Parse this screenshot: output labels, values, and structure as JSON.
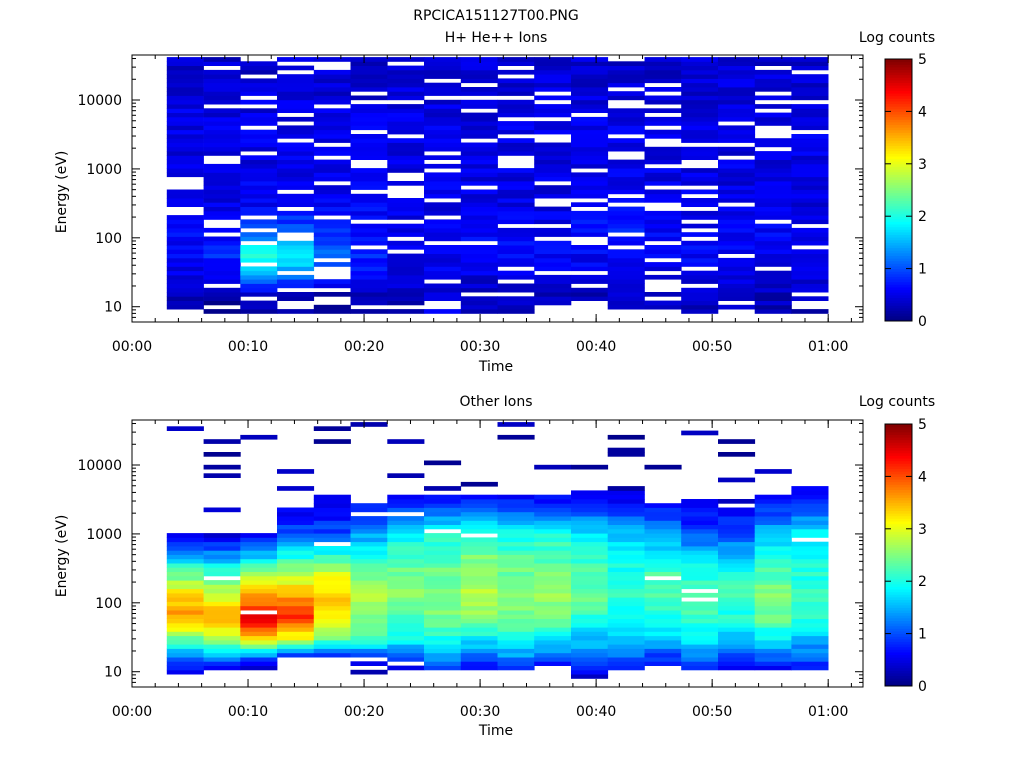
{
  "title": "RPCICA151127T00.PNG",
  "colorscale": {
    "stops": [
      "#00007f",
      "#0000ff",
      "#0080ff",
      "#00ffff",
      "#80ff80",
      "#ffff00",
      "#ff8000",
      "#ff0000",
      "#7f0000"
    ]
  },
  "chart_data": [
    {
      "type": "heatmap",
      "title": "H+ He++ Ions",
      "xlabel": "Time",
      "ylabel": "Energy (eV)",
      "colorbar_label": "Log counts",
      "colorbar_range": [
        0,
        5
      ],
      "colorbar_ticks": [
        "0",
        "1",
        "2",
        "3",
        "4",
        "5"
      ],
      "yscale": "log",
      "xlim": [
        "00:00",
        "01:03"
      ],
      "ylim": [
        6,
        45000
      ],
      "x_ticks": [
        "00:00",
        "00:10",
        "00:20",
        "00:30",
        "00:40",
        "00:50",
        "01:00"
      ],
      "y_ticks": [
        "10",
        "100",
        "1000",
        "10000"
      ],
      "data_extent_x": [
        "00:03",
        "01:00"
      ],
      "time_bins": 18,
      "dominant_log_counts": {
        "energy_above_300eV": 0.6,
        "energy_100_to_300eV_at_00:10_00:15": 2.2,
        "lowest_energy": 0.3
      },
      "bin_log_counts": [
        {
          "time": "00:03",
          "profile": [
            0.2,
            0.3,
            0.5,
            0.6,
            0.6,
            0.5,
            0.5,
            0.5,
            0.4
          ]
        },
        {
          "time": "00:06",
          "profile": [
            0.0,
            0.2,
            0.6,
            0.8,
            0.6,
            0.5,
            0.5,
            0.5,
            0.4
          ]
        },
        {
          "time": "00:10",
          "profile": [
            0.2,
            0.4,
            1.4,
            2.2,
            1.0,
            0.6,
            0.5,
            0.5,
            0.4
          ]
        },
        {
          "time": "00:13",
          "profile": [
            0.2,
            0.4,
            1.3,
            2.0,
            1.1,
            0.6,
            0.5,
            0.5,
            0.4
          ]
        },
        {
          "time": "00:16",
          "profile": [
            0.0,
            0.3,
            0.9,
            1.2,
            0.8,
            0.6,
            0.5,
            0.5,
            0.4
          ]
        },
        {
          "time": "00:19",
          "profile": [
            0.0,
            0.3,
            0.6,
            0.8,
            0.7,
            0.6,
            0.5,
            0.5,
            0.4
          ]
        },
        {
          "time": "00:22",
          "profile": [
            0.2,
            0.3,
            0.5,
            0.6,
            0.6,
            0.5,
            0.5,
            0.5,
            0.4
          ]
        },
        {
          "time": "00:25",
          "profile": [
            0.5,
            0.4,
            0.5,
            0.6,
            0.6,
            0.5,
            0.5,
            0.5,
            0.4
          ]
        },
        {
          "time": "00:29",
          "profile": [
            0.4,
            0.3,
            0.5,
            0.6,
            0.6,
            0.5,
            0.5,
            0.5,
            0.4
          ]
        },
        {
          "time": "00:32",
          "profile": [
            0.3,
            0.3,
            0.5,
            0.6,
            0.6,
            0.5,
            0.5,
            0.5,
            0.4
          ]
        },
        {
          "time": "00:35",
          "profile": [
            0.3,
            0.3,
            0.5,
            0.6,
            0.6,
            0.5,
            0.5,
            0.5,
            0.4
          ]
        },
        {
          "time": "00:38",
          "profile": [
            0.4,
            0.3,
            0.5,
            0.6,
            0.7,
            0.5,
            0.5,
            0.5,
            0.4
          ]
        },
        {
          "time": "00:41",
          "profile": [
            0.3,
            0.3,
            0.5,
            0.6,
            0.8,
            0.6,
            0.5,
            0.5,
            0.4
          ]
        },
        {
          "time": "00:44",
          "profile": [
            0.3,
            0.3,
            0.5,
            0.6,
            0.6,
            0.5,
            0.5,
            0.5,
            0.4
          ]
        },
        {
          "time": "00:47",
          "profile": [
            0.3,
            0.3,
            0.5,
            0.6,
            0.6,
            0.5,
            0.5,
            0.5,
            0.4
          ]
        },
        {
          "time": "00:51",
          "profile": [
            0.3,
            0.3,
            0.5,
            0.6,
            0.6,
            0.5,
            0.5,
            0.5,
            0.4
          ]
        },
        {
          "time": "00:54",
          "profile": [
            0.3,
            0.3,
            0.5,
            0.6,
            0.6,
            0.5,
            0.5,
            0.5,
            0.4
          ]
        },
        {
          "time": "00:57",
          "profile": [
            0.3,
            0.3,
            0.5,
            0.6,
            0.6,
            0.5,
            0.5,
            0.5,
            0.4
          ]
        }
      ],
      "profile_energy_centers_eV": [
        8,
        15,
        30,
        60,
        120,
        300,
        1000,
        5000,
        25000
      ]
    },
    {
      "type": "heatmap",
      "title": "Other Ions",
      "xlabel": "Time",
      "ylabel": "Energy (eV)",
      "colorbar_label": "Log counts",
      "colorbar_range": [
        0,
        5
      ],
      "colorbar_ticks": [
        "0",
        "1",
        "2",
        "3",
        "4",
        "5"
      ],
      "yscale": "log",
      "xlim": [
        "00:00",
        "01:03"
      ],
      "ylim": [
        6,
        45000
      ],
      "x_ticks": [
        "00:00",
        "00:10",
        "00:20",
        "00:30",
        "00:40",
        "00:50",
        "01:00"
      ],
      "y_ticks": [
        "10",
        "100",
        "1000",
        "10000"
      ],
      "data_extent_x": [
        "00:03",
        "01:00"
      ],
      "time_bins": 18,
      "bin_log_counts": [
        {
          "time": "00:03",
          "profile": [
            0.1,
            1.1,
            2.4,
            3.6,
            3.4,
            2.2,
            0.4,
            0.2,
            0.2
          ]
        },
        {
          "time": "00:06",
          "profile": [
            0.1,
            1.2,
            2.6,
            3.6,
            3.0,
            2.0,
            0.4,
            0.2,
            0.2
          ]
        },
        {
          "time": "00:10",
          "profile": [
            0.0,
            0.8,
            3.4,
            4.4,
            3.6,
            2.4,
            0.4,
            0.2,
            0.2
          ]
        },
        {
          "time": "00:13",
          "profile": [
            0.0,
            0.2,
            3.0,
            4.2,
            3.6,
            2.6,
            1.0,
            0.2,
            0.2
          ]
        },
        {
          "time": "00:16",
          "profile": [
            0.0,
            0.2,
            2.4,
            3.2,
            3.5,
            2.8,
            1.0,
            0.2,
            0.2
          ]
        },
        {
          "time": "00:19",
          "profile": [
            0.0,
            0.6,
            2.2,
            2.4,
            2.8,
            2.4,
            1.4,
            0.2,
            0.2
          ]
        },
        {
          "time": "00:22",
          "profile": [
            0.0,
            0.8,
            1.9,
            2.2,
            2.6,
            2.4,
            1.8,
            0.2,
            0.2
          ]
        },
        {
          "time": "00:25",
          "profile": [
            0.0,
            1.4,
            2.0,
            2.4,
            2.6,
            2.4,
            2.0,
            0.2,
            0.2
          ]
        },
        {
          "time": "00:29",
          "profile": [
            0.0,
            1.0,
            1.8,
            2.6,
            2.8,
            2.6,
            2.2,
            0.2,
            0.2
          ]
        },
        {
          "time": "00:32",
          "profile": [
            0.0,
            1.2,
            2.0,
            2.4,
            2.6,
            2.4,
            2.0,
            0.2,
            0.2
          ]
        },
        {
          "time": "00:35",
          "profile": [
            0.0,
            1.0,
            1.8,
            2.4,
            2.6,
            2.4,
            2.0,
            0.2,
            0.2
          ]
        },
        {
          "time": "00:38",
          "profile": [
            0.2,
            1.2,
            1.6,
            2.0,
            2.4,
            2.2,
            1.8,
            0.2,
            0.2
          ]
        },
        {
          "time": "00:41",
          "profile": [
            0.2,
            1.0,
            1.6,
            1.8,
            2.2,
            2.0,
            1.6,
            0.2,
            0.2
          ]
        },
        {
          "time": "00:44",
          "profile": [
            0.0,
            0.8,
            1.6,
            2.0,
            2.2,
            2.2,
            1.4,
            0.2,
            0.2
          ]
        },
        {
          "time": "00:47",
          "profile": [
            0.0,
            1.2,
            1.8,
            2.2,
            2.4,
            2.0,
            1.0,
            0.2,
            0.2
          ]
        },
        {
          "time": "00:51",
          "profile": [
            0.2,
            0.8,
            1.6,
            2.0,
            2.2,
            2.0,
            1.0,
            0.2,
            0.2
          ]
        },
        {
          "time": "00:54",
          "profile": [
            0.2,
            1.0,
            1.8,
            2.4,
            2.6,
            2.2,
            1.6,
            0.2,
            0.2
          ]
        },
        {
          "time": "00:57",
          "profile": [
            0.2,
            1.0,
            1.6,
            2.0,
            2.2,
            2.0,
            1.8,
            0.4,
            0.2
          ]
        }
      ],
      "profile_energy_centers_eV": [
        8,
        15,
        30,
        60,
        120,
        300,
        1000,
        5000,
        25000
      ]
    }
  ]
}
